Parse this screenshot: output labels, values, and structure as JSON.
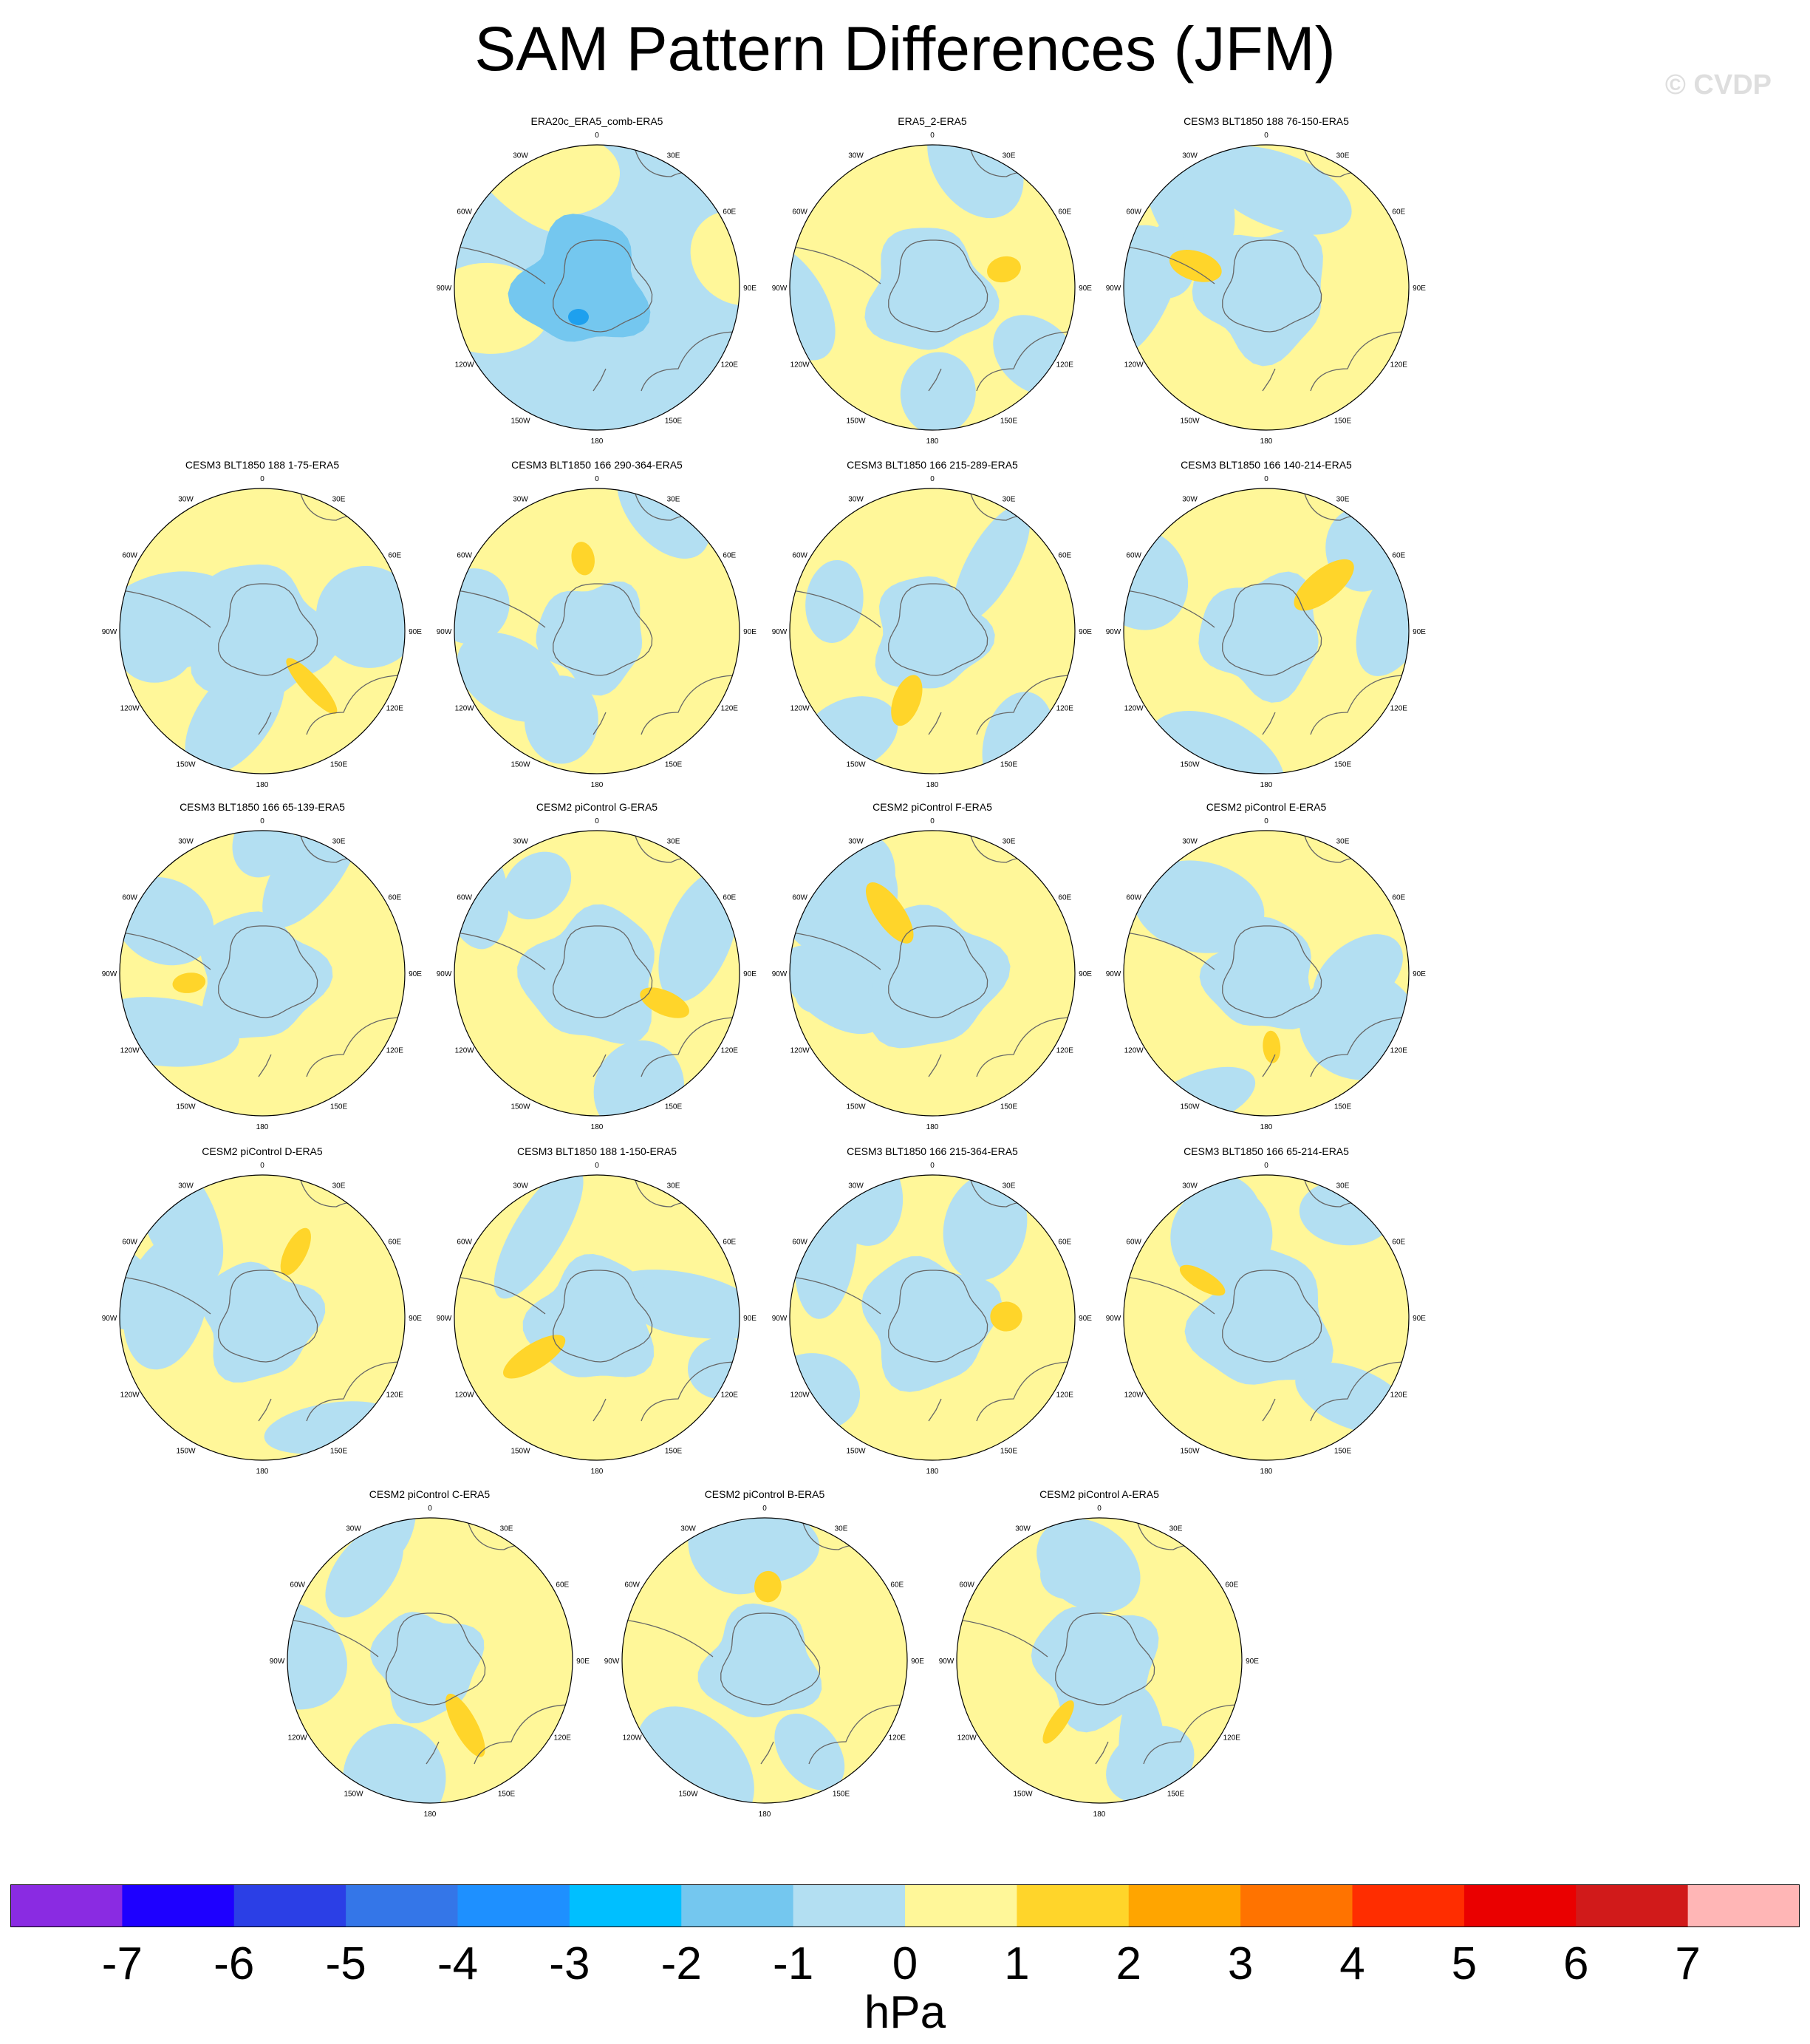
{
  "title": "SAM Pattern Differences (JFM)",
  "watermark": "© CVDP",
  "panels": [
    {
      "title": "ERA20c_ERA5_comb-ERA5",
      "base": "neg",
      "variant": 0,
      "row": 0,
      "col": 1
    },
    {
      "title": "ERA5_2-ERA5",
      "base": "pos",
      "variant": 1,
      "row": 0,
      "col": 2
    },
    {
      "title": "CESM3 BLT1850 188 76-150-ERA5",
      "base": "pos",
      "variant": 2,
      "row": 0,
      "col": 3
    },
    {
      "title": "CESM3 BLT1850 188 1-75-ERA5",
      "base": "pos",
      "variant": 3,
      "row": 1,
      "col": 0
    },
    {
      "title": "CESM3 BLT1850 166 290-364-ERA5",
      "base": "pos",
      "variant": 4,
      "row": 1,
      "col": 1
    },
    {
      "title": "CESM3 BLT1850 166 215-289-ERA5",
      "base": "pos",
      "variant": 5,
      "row": 1,
      "col": 2
    },
    {
      "title": "CESM3 BLT1850 166 140-214-ERA5",
      "base": "pos",
      "variant": 6,
      "row": 1,
      "col": 3
    },
    {
      "title": "CESM3 BLT1850 166 65-139-ERA5",
      "base": "pos",
      "variant": 7,
      "row": 2,
      "col": 0
    },
    {
      "title": "CESM2 piControl G-ERA5",
      "base": "pos",
      "variant": 8,
      "row": 2,
      "col": 1
    },
    {
      "title": "CESM2 piControl F-ERA5",
      "base": "pos",
      "variant": 9,
      "row": 2,
      "col": 2
    },
    {
      "title": "CESM2 piControl E-ERA5",
      "base": "pos",
      "variant": 10,
      "row": 2,
      "col": 3
    },
    {
      "title": "CESM2 piControl D-ERA5",
      "base": "pos",
      "variant": 11,
      "row": 3,
      "col": 0
    },
    {
      "title": "CESM3 BLT1850 188 1-150-ERA5",
      "base": "pos",
      "variant": 12,
      "row": 3,
      "col": 1
    },
    {
      "title": "CESM3 BLT1850 166 215-364-ERA5",
      "base": "pos",
      "variant": 13,
      "row": 3,
      "col": 2
    },
    {
      "title": "CESM3 BLT1850 166 65-214-ERA5",
      "base": "pos",
      "variant": 14,
      "row": 3,
      "col": 3
    },
    {
      "title": "CESM2 piControl C-ERA5",
      "base": "pos",
      "variant": 15,
      "row": 4,
      "col": 0.5
    },
    {
      "title": "CESM2 piControl B-ERA5",
      "base": "pos",
      "variant": 16,
      "row": 4,
      "col": 1.5
    },
    {
      "title": "CESM2 piControl A-ERA5",
      "base": "pos",
      "variant": 17,
      "row": 4,
      "col": 2.5
    }
  ],
  "longitude_labels": [
    "0",
    "30E",
    "60E",
    "90E",
    "120E",
    "150E",
    "180",
    "150W",
    "120W",
    "90W",
    "60W",
    "30W"
  ],
  "colorbar": {
    "colors": [
      "#8a2be2",
      "#1e00ff",
      "#2b3fe6",
      "#3476e8",
      "#1e90ff",
      "#00bfff",
      "#74c7ef",
      "#b3dff2",
      "#fff799",
      "#ffd52a",
      "#ffa500",
      "#ff7300",
      "#ff2d00",
      "#ea0000",
      "#d11a1a",
      "#ffb6b6"
    ],
    "ticks": [
      "-7",
      "-6",
      "-5",
      "-4",
      "-3",
      "-2",
      "-1",
      "0",
      "1",
      "2",
      "3",
      "4",
      "5",
      "6",
      "7"
    ],
    "units": "hPa"
  }
}
